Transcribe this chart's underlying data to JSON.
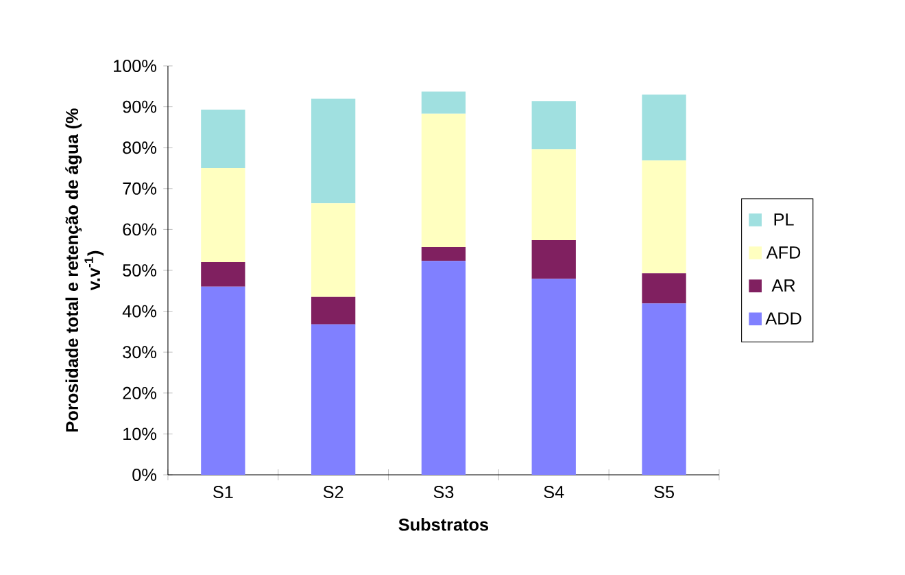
{
  "chart_data": {
    "type": "bar",
    "stacked": true,
    "xlabel": "Substratos",
    "ylabel": "Porosidade total e retenção de água (% v.v$^{-1}$)",
    "categories": [
      "S1",
      "S2",
      "S3",
      "S4",
      "S5"
    ],
    "series": [
      {
        "name": "ADD",
        "color": "#8080ff",
        "values": [
          46,
          36.8,
          52.3,
          47.9,
          41.9
        ]
      },
      {
        "name": "AR",
        "color": "#802060",
        "values": [
          6,
          6.7,
          3.4,
          9.5,
          7.4
        ]
      },
      {
        "name": "AFD",
        "color": "#ffffc0",
        "values": [
          23,
          22.9,
          32.6,
          22.2,
          27.6
        ]
      },
      {
        "name": "PL",
        "color": "#a0e0e0",
        "values": [
          14.3,
          25.6,
          5.4,
          11.8,
          16.1
        ]
      }
    ],
    "ylim": [
      0,
      100
    ],
    "yticks": [
      {
        "value": 0,
        "label": "0%"
      },
      {
        "value": 10,
        "label": "10%"
      },
      {
        "value": 20,
        "label": "20%"
      },
      {
        "value": 30,
        "label": "30%"
      },
      {
        "value": 40,
        "label": "40%"
      },
      {
        "value": 50,
        "label": "50%"
      },
      {
        "value": 60,
        "label": "60%"
      },
      {
        "value": 70,
        "label": "70%"
      },
      {
        "value": 80,
        "label": "80%"
      },
      {
        "value": 90,
        "label": "90%"
      },
      {
        "value": 100,
        "label": "100%"
      }
    ],
    "legend": "right"
  }
}
